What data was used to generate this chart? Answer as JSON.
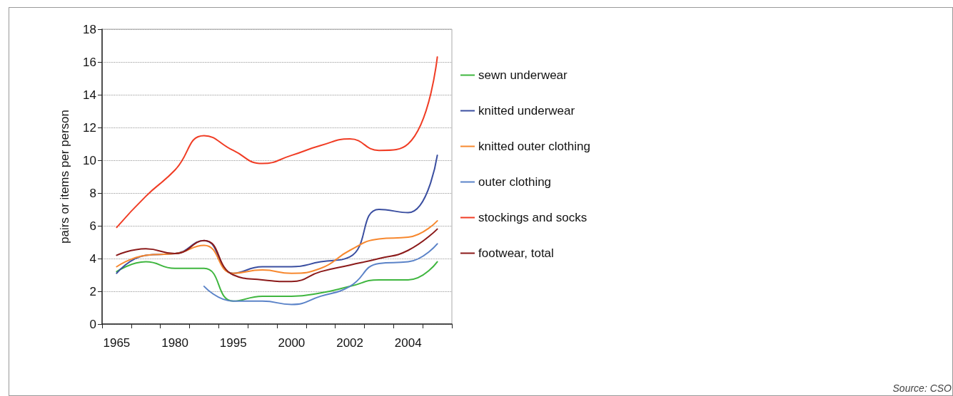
{
  "chart_data": {
    "type": "line",
    "ylabel": "pairs or items per person",
    "categories": [
      "1965",
      null,
      "1980",
      null,
      "1995",
      null,
      "2000",
      null,
      "2002",
      null,
      "2004",
      null
    ],
    "series": [
      {
        "name": "sewn underwear",
        "color": "#3fb63f",
        "values": [
          3.2,
          3.8,
          3.4,
          3.4,
          1.4,
          1.7,
          1.7,
          1.9,
          2.3,
          2.7,
          2.7,
          3.8
        ]
      },
      {
        "name": "knitted underwear",
        "color": "#3a4ea0",
        "values": [
          3.1,
          4.2,
          4.3,
          5.1,
          3.1,
          3.5,
          3.5,
          3.8,
          4.1,
          7.0,
          6.8,
          10.3
        ]
      },
      {
        "name": "knitted outer clothing",
        "color": "#f7882f",
        "values": [
          3.5,
          4.2,
          4.3,
          4.8,
          3.1,
          3.3,
          3.1,
          3.4,
          4.5,
          5.2,
          5.3,
          6.3
        ]
      },
      {
        "name": "outer clothing",
        "color": "#5b83c8",
        "values": [
          null,
          null,
          null,
          2.3,
          1.4,
          1.4,
          1.2,
          1.7,
          2.3,
          3.7,
          3.8,
          4.9
        ]
      },
      {
        "name": "stockings and socks",
        "color": "#f03c24",
        "values": [
          5.9,
          7.8,
          9.4,
          11.5,
          10.6,
          9.8,
          10.3,
          10.9,
          11.3,
          10.6,
          11.0,
          16.3
        ]
      },
      {
        "name": "footwear, total",
        "color": "#8b1a1a",
        "values": [
          4.2,
          4.6,
          4.3,
          5.1,
          3.0,
          2.7,
          2.6,
          3.2,
          3.6,
          4.0,
          4.5,
          5.8
        ]
      }
    ],
    "ylim": [
      0,
      18
    ],
    "yticks": [
      0,
      2,
      4,
      6,
      8,
      10,
      12,
      14,
      16,
      18
    ],
    "grid": "y",
    "legend": "right",
    "marker": "none",
    "line_style": "solid",
    "annotations": [
      "Source: CSO"
    ]
  }
}
